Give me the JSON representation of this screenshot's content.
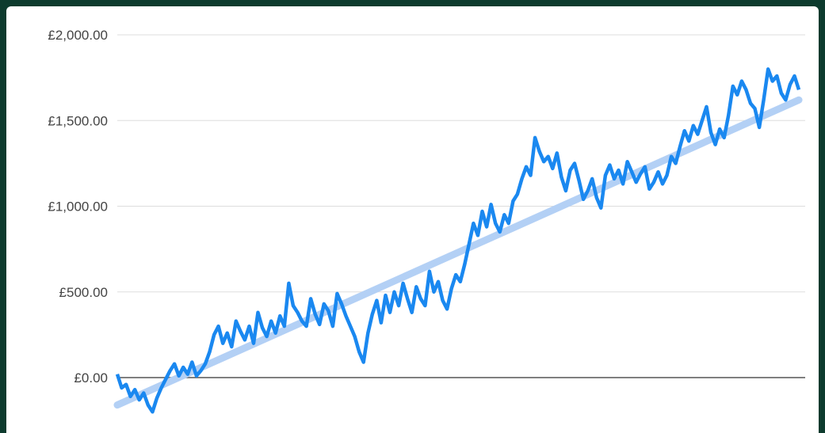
{
  "chart_data": {
    "type": "line",
    "title": "",
    "xlabel": "",
    "ylabel": "",
    "ylim": [
      -300,
      2000
    ],
    "y_ticks": [
      "£0.00",
      "£500.00",
      "£1,000.00",
      "£1,500.00",
      "£2,000.00"
    ],
    "y_tick_values": [
      0,
      500,
      1000,
      1500,
      2000
    ],
    "grid": true,
    "legend": "none",
    "colors": {
      "series": "#1a88f0",
      "trend": "#b3d0f5",
      "grid": "#dddddd",
      "zero_line": "#555555"
    },
    "series": [
      {
        "values": [
          20,
          -60,
          -40,
          -110,
          -70,
          -130,
          -90,
          -160,
          -200,
          -120,
          -60,
          -10,
          40,
          80,
          10,
          60,
          20,
          90,
          10,
          40,
          80,
          150,
          250,
          300,
          200,
          260,
          180,
          330,
          270,
          220,
          300,
          200,
          380,
          290,
          240,
          330,
          260,
          360,
          300,
          550,
          420,
          380,
          330,
          300,
          460,
          370,
          310,
          430,
          390,
          300,
          490,
          430,
          360,
          300,
          240,
          150,
          90,
          260,
          370,
          450,
          320,
          480,
          380,
          500,
          420,
          550,
          460,
          380,
          530,
          460,
          420,
          620,
          500,
          560,
          450,
          400,
          520,
          600,
          560,
          660,
          780,
          900,
          830,
          970,
          880,
          1010,
          900,
          850,
          950,
          900,
          1030,
          1070,
          1160,
          1230,
          1180,
          1400,
          1320,
          1260,
          1290,
          1220,
          1310,
          1170,
          1090,
          1210,
          1250,
          1150,
          1040,
          1090,
          1160,
          1050,
          990,
          1180,
          1240,
          1160,
          1210,
          1130,
          1260,
          1200,
          1140,
          1190,
          1230,
          1100,
          1140,
          1200,
          1130,
          1180,
          1290,
          1250,
          1350,
          1440,
          1380,
          1470,
          1420,
          1500,
          1580,
          1430,
          1360,
          1450,
          1400,
          1530,
          1700,
          1650,
          1730,
          1680,
          1600,
          1570,
          1460,
          1620,
          1800,
          1730,
          1760,
          1660,
          1620,
          1710,
          1760,
          1680
        ]
      },
      {
        "name": "",
        "trendline": true,
        "values": [
          -160,
          1620
        ]
      }
    ]
  }
}
